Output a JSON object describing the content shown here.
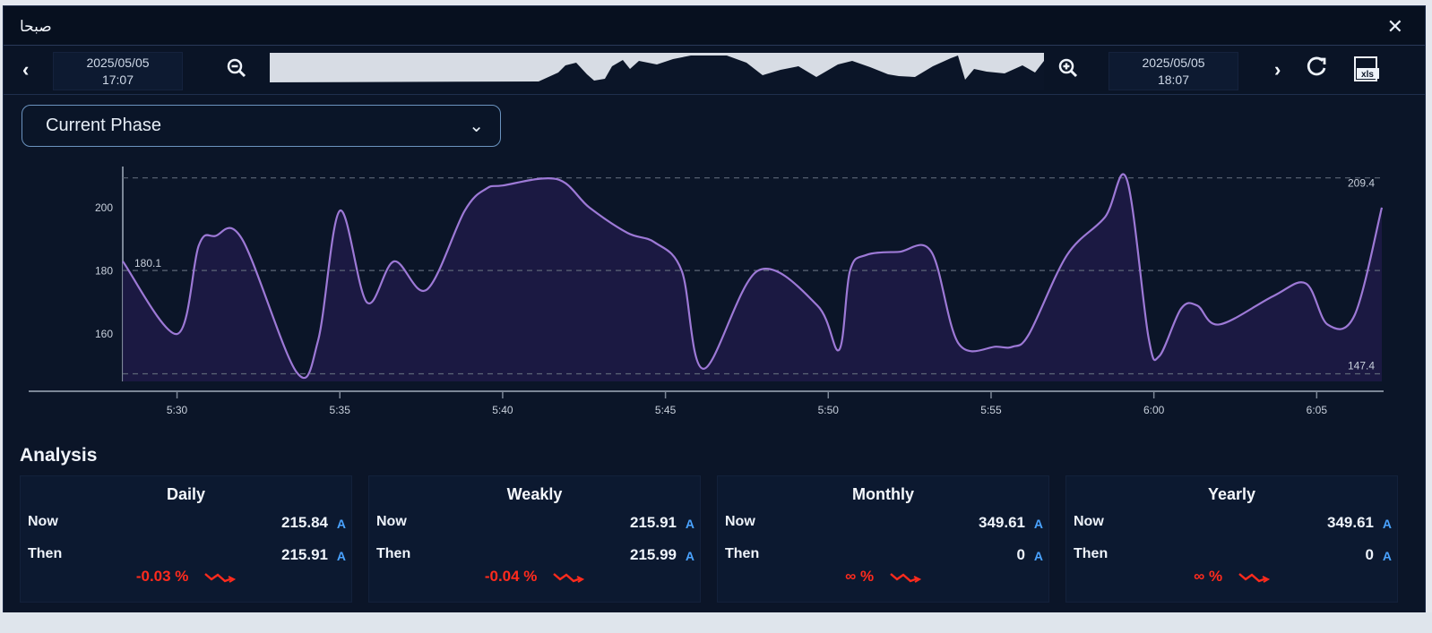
{
  "window": {
    "title": "صبحا",
    "close_icon": "close-icon"
  },
  "toolbar": {
    "prev_icon": "chevron-left-icon",
    "start_date": "2025/05/05",
    "start_time": "17:07",
    "zoom_out_icon": "zoom-out-icon",
    "zoom_in_icon": "zoom-in-icon",
    "end_date": "2025/05/05",
    "end_time": "18:07",
    "next_icon": "chevron-right-icon",
    "refresh_icon": "refresh-icon",
    "export_icon": "xls-export-icon",
    "export_label": "xls"
  },
  "selector": {
    "selected": "Current Phase",
    "icon": "chevron-down-icon"
  },
  "chart_data": {
    "type": "area",
    "x_ticks": [
      "5:30",
      "5:35",
      "5:40",
      "5:45",
      "5:50",
      "5:55",
      "6:00",
      "6:05"
    ],
    "y_ticks": [
      "200",
      "180",
      "160"
    ],
    "ylim": [
      145,
      213
    ],
    "x_range": [
      "5:28:20",
      "6:07:00"
    ],
    "grid": false,
    "reference_lines": [
      {
        "label": "209.4",
        "value": 209.4
      },
      {
        "label": "180.1",
        "value": 180.1
      },
      {
        "label": "147.4",
        "value": 147.4
      }
    ],
    "series": [
      {
        "x": [
          "5:28:20",
          "5:30:00",
          "5:30:40",
          "5:31:10",
          "5:32:00",
          "5:33:40",
          "5:34:20",
          "5:35:00",
          "5:35:50",
          "5:36:40",
          "5:37:40",
          "5:38:50",
          "5:39:30",
          "5:40:00",
          "5:41:40",
          "5:42:40",
          "5:43:50",
          "5:44:40",
          "5:45:30",
          "5:46:10",
          "5:47:50",
          "5:49:40",
          "5:50:20",
          "5:50:40",
          "5:51:10",
          "5:52:10",
          "5:53:10",
          "5:54:00",
          "5:55:10",
          "5:55:40",
          "5:56:10",
          "5:57:20",
          "5:58:30",
          "5:59:10",
          "5:59:50",
          "6:00:10",
          "6:00:50",
          "6:01:20",
          "6:02:00",
          "6:03:40",
          "6:04:40",
          "6:05:20",
          "6:06:10",
          "6:07:00"
        ],
        "values": [
          183,
          160,
          188,
          191,
          190,
          148,
          158,
          199,
          170,
          183,
          174,
          199,
          206,
          207,
          209,
          200,
          192,
          189,
          180,
          149,
          180,
          169,
          155,
          180,
          185,
          186,
          186,
          157,
          156,
          156,
          160,
          185,
          197,
          209,
          159,
          153,
          168,
          169,
          163,
          172,
          176,
          163,
          166,
          200
        ]
      }
    ]
  },
  "analysis": {
    "title": "Analysis",
    "cards": [
      {
        "period": "Daily",
        "now_label": "Now",
        "now_value": "215.84",
        "then_label": "Then",
        "then_value": "215.91",
        "unit": "A",
        "change": "-0.03 %",
        "trend_icon": "trend-down-icon"
      },
      {
        "period": "Weakly",
        "now_label": "Now",
        "now_value": "215.91",
        "then_label": "Then",
        "then_value": "215.99",
        "unit": "A",
        "change": "-0.04 %",
        "trend_icon": "trend-down-icon"
      },
      {
        "period": "Monthly",
        "now_label": "Now",
        "now_value": "349.61",
        "then_label": "Then",
        "then_value": "0",
        "unit": "A",
        "change": "∞ %",
        "trend_icon": "trend-down-icon"
      },
      {
        "period": "Yearly",
        "now_label": "Now",
        "now_value": "349.61",
        "then_label": "Then",
        "then_value": "0",
        "unit": "A",
        "change": "∞ %",
        "trend_icon": "trend-down-icon"
      }
    ]
  },
  "colors": {
    "background": "#0b1528",
    "line": "#9d79d6",
    "fill": "#1d1a45",
    "negative": "#ff2b1d",
    "unit": "#4aa3ff"
  }
}
